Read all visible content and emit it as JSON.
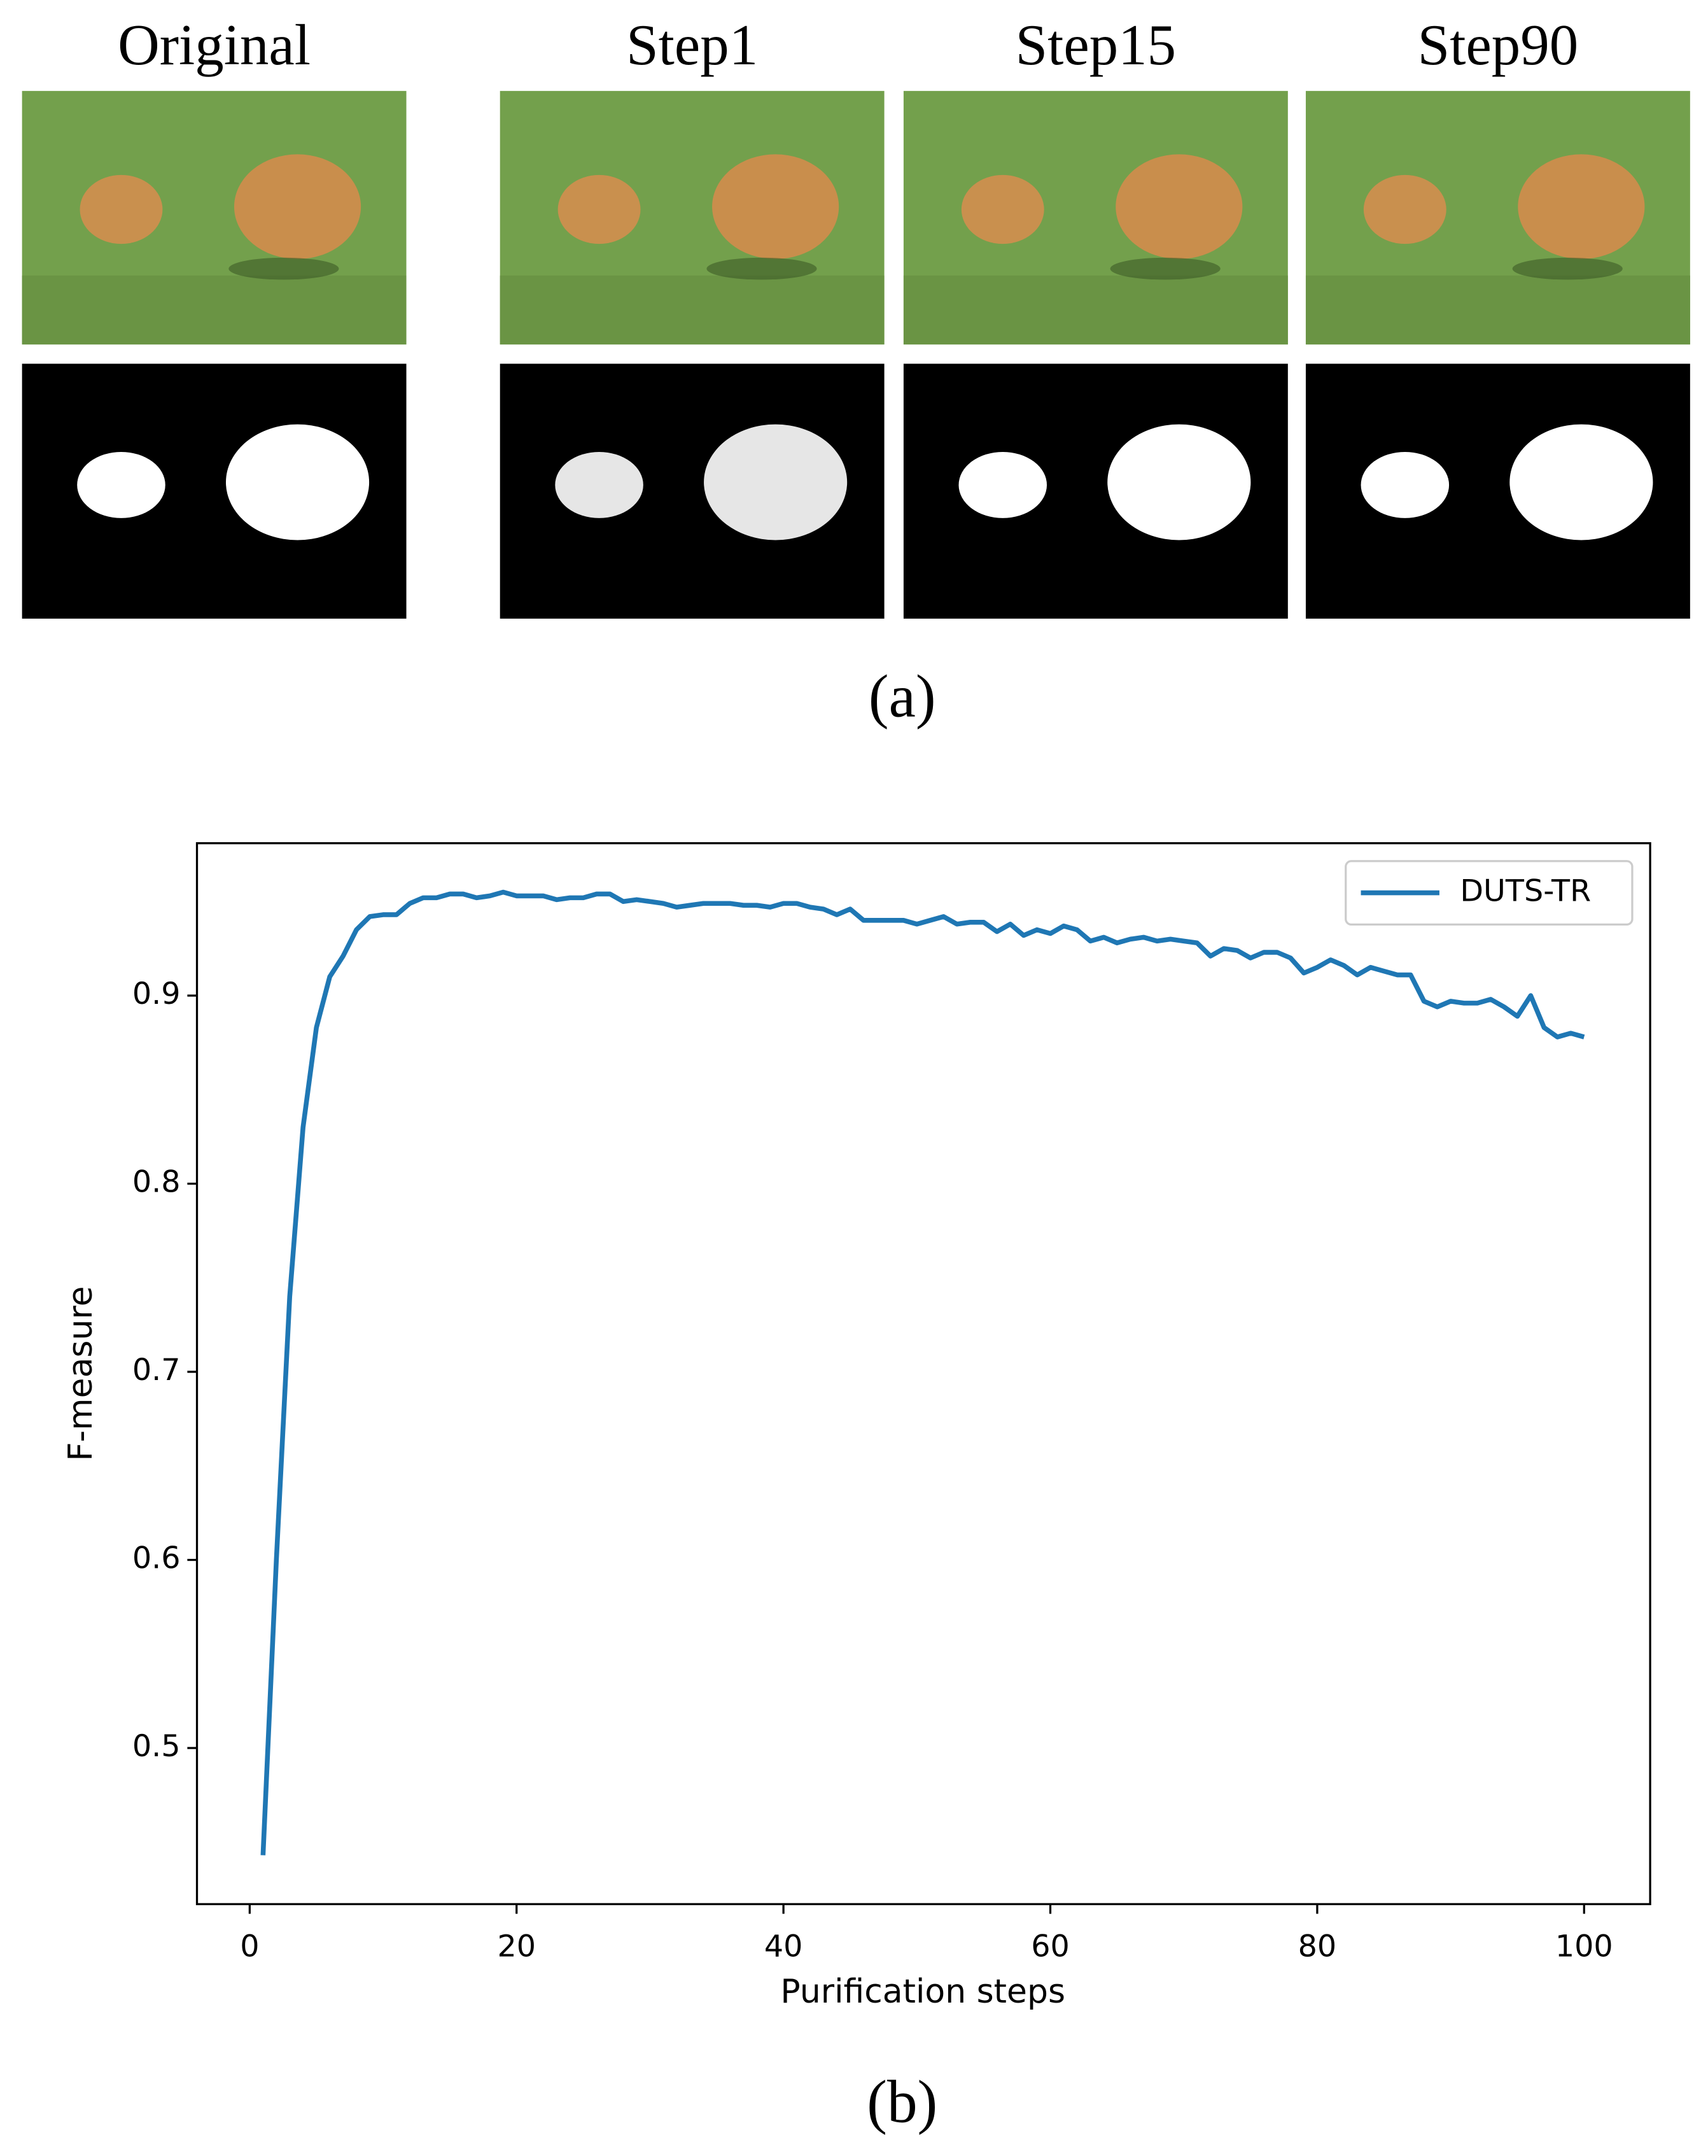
{
  "panel_a": {
    "titles": [
      "Original",
      "Step1",
      "Step15",
      "Step90"
    ],
    "label": "(a)"
  },
  "panel_b": {
    "label": "(b)"
  },
  "chart_data": {
    "type": "line",
    "x_label": "Purification steps",
    "y_label": "F-measure",
    "x": [
      1,
      2,
      3,
      4,
      5,
      6,
      7,
      8,
      9,
      10,
      11,
      12,
      13,
      14,
      15,
      16,
      17,
      18,
      19,
      20,
      21,
      22,
      23,
      24,
      25,
      26,
      27,
      28,
      29,
      30,
      31,
      32,
      33,
      34,
      35,
      36,
      37,
      38,
      39,
      40,
      41,
      42,
      43,
      44,
      45,
      46,
      47,
      48,
      49,
      50,
      51,
      52,
      53,
      54,
      55,
      56,
      57,
      58,
      59,
      60,
      61,
      62,
      63,
      64,
      65,
      66,
      67,
      68,
      69,
      70,
      71,
      72,
      73,
      74,
      75,
      76,
      77,
      78,
      79,
      80,
      81,
      82,
      83,
      84,
      85,
      86,
      87,
      88,
      89,
      90,
      91,
      92,
      93,
      94,
      95,
      96,
      97,
      98,
      99,
      100
    ],
    "series": [
      {
        "name": "DUTS-TR",
        "color": "#1f77b4",
        "values": [
          0.443,
          0.6,
          0.74,
          0.83,
          0.883,
          0.91,
          0.921,
          0.935,
          0.942,
          0.943,
          0.943,
          0.949,
          0.952,
          0.952,
          0.954,
          0.954,
          0.952,
          0.953,
          0.955,
          0.953,
          0.953,
          0.953,
          0.951,
          0.952,
          0.952,
          0.954,
          0.954,
          0.95,
          0.951,
          0.95,
          0.949,
          0.947,
          0.948,
          0.949,
          0.949,
          0.949,
          0.948,
          0.948,
          0.947,
          0.949,
          0.949,
          0.947,
          0.946,
          0.943,
          0.946,
          0.94,
          0.94,
          0.94,
          0.94,
          0.938,
          0.94,
          0.942,
          0.938,
          0.939,
          0.939,
          0.934,
          0.938,
          0.932,
          0.935,
          0.933,
          0.937,
          0.935,
          0.929,
          0.931,
          0.928,
          0.93,
          0.931,
          0.929,
          0.93,
          0.929,
          0.928,
          0.921,
          0.925,
          0.924,
          0.92,
          0.923,
          0.923,
          0.92,
          0.912,
          0.915,
          0.919,
          0.916,
          0.911,
          0.915,
          0.913,
          0.911,
          0.911,
          0.897,
          0.894,
          0.897,
          0.896,
          0.896,
          0.898,
          0.894,
          0.889,
          0.9,
          0.883,
          0.878,
          0.88,
          0.878
        ]
      }
    ],
    "xlim": [
      -3.95,
      104.95
    ],
    "ylim": [
      0.417,
      0.981
    ],
    "xticks": [
      0,
      20,
      40,
      60,
      80,
      100
    ],
    "yticks": [
      0.5,
      0.6,
      0.7,
      0.8,
      0.9
    ],
    "legend": "upper right"
  }
}
